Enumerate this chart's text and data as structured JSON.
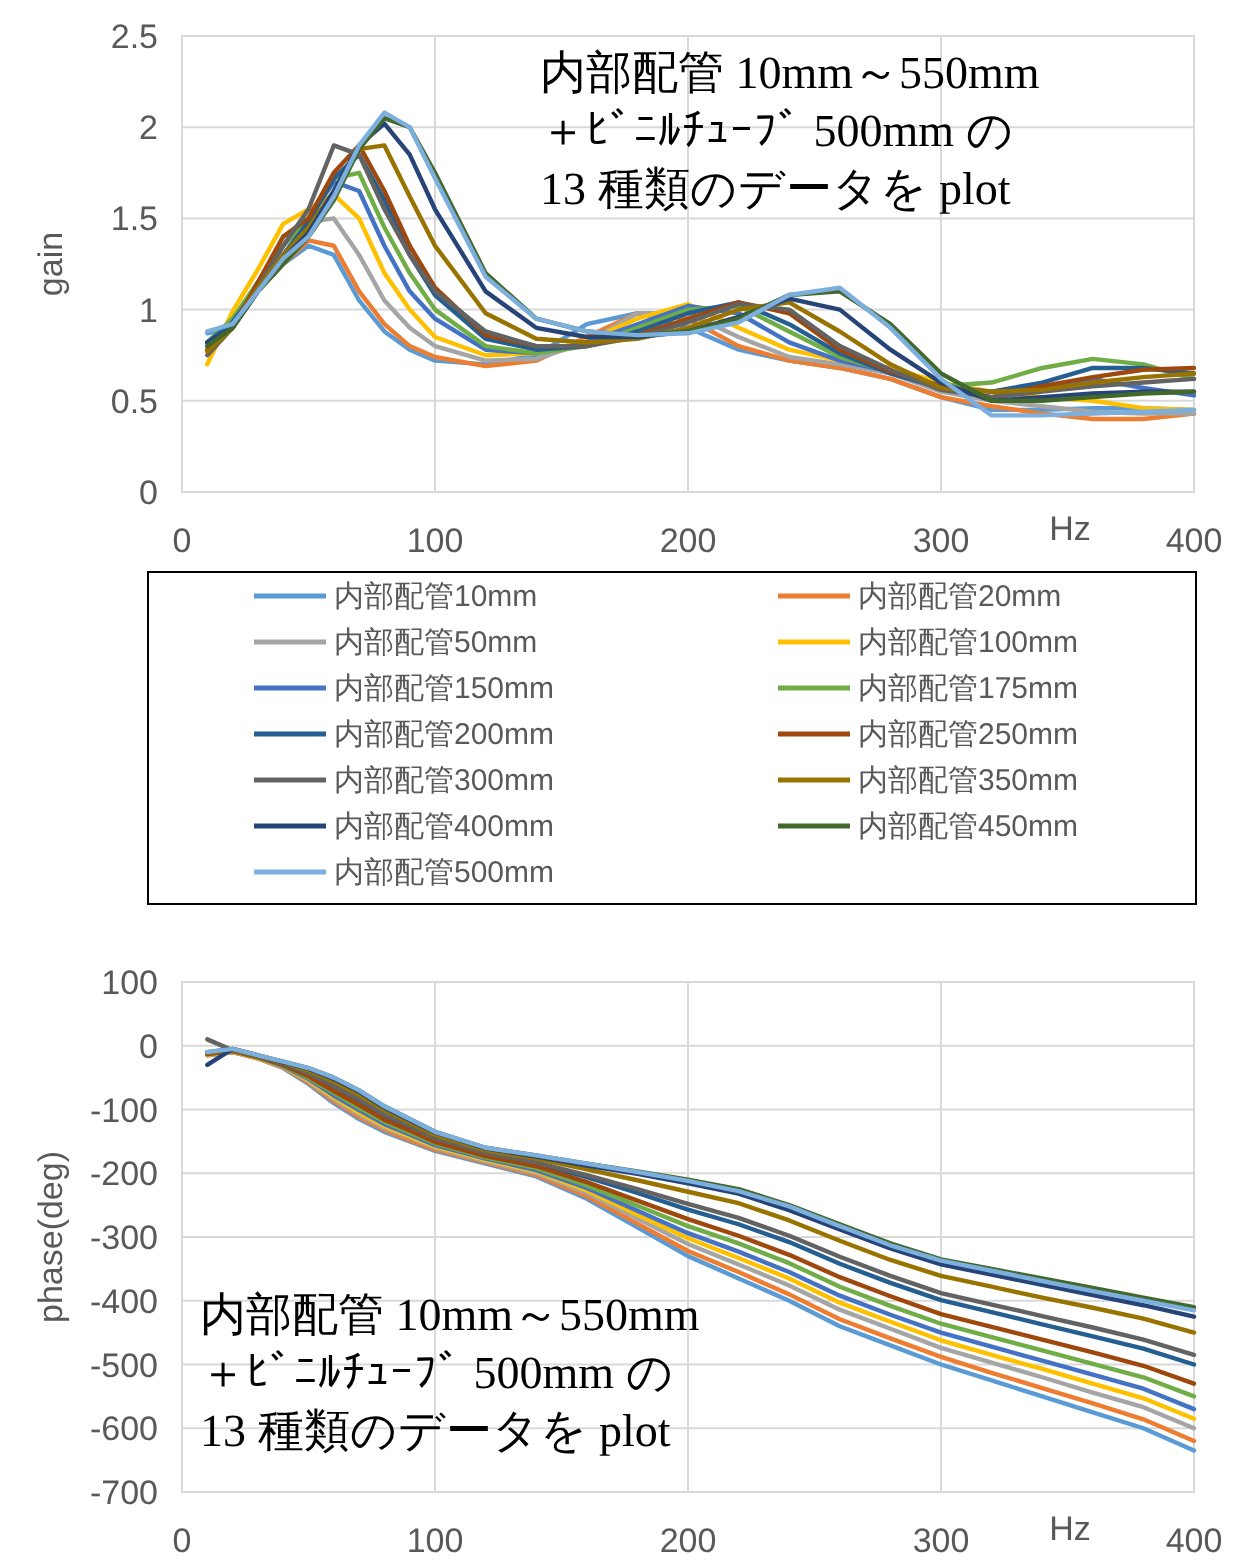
{
  "chart_data": [
    {
      "type": "line",
      "ylabel": "gain",
      "xlabel": "Hz",
      "xlim": [
        0,
        400
      ],
      "ylim": [
        0,
        2.5
      ],
      "xticks": [
        0,
        100,
        200,
        300,
        400
      ],
      "yticks": [
        0,
        0.5,
        1,
        1.5,
        2,
        2.5
      ],
      "grid": true,
      "legend": "bottom",
      "annotations": [
        "内部配管 10mm～550mm\n＋ﾋﾞﾆﾙﾁｭｰﾌﾞ 500mm の\n13 種類のデータを plot"
      ],
      "x": [
        10,
        20,
        30,
        40,
        50,
        60,
        70,
        80,
        90,
        100,
        120,
        140,
        160,
        180,
        200,
        220,
        240,
        260,
        280,
        300,
        320,
        340,
        360,
        380,
        400
      ],
      "series": [
        {
          "name": "内部配管10mm",
          "color": "#5b9bd5",
          "values": [
            0.87,
            0.9,
            1.1,
            1.25,
            1.35,
            1.3,
            1.05,
            0.88,
            0.78,
            0.72,
            0.7,
            0.75,
            0.92,
            0.98,
            0.9,
            0.78,
            0.72,
            0.68,
            0.62,
            0.52,
            0.45,
            0.45,
            0.46,
            0.46,
            0.45
          ]
        },
        {
          "name": "内部配管20mm",
          "color": "#ed7d31",
          "values": [
            null,
            null,
            1.1,
            1.25,
            1.38,
            1.35,
            1.1,
            0.92,
            0.8,
            0.74,
            0.69,
            0.72,
            0.85,
            0.98,
            0.95,
            0.8,
            0.72,
            0.68,
            0.62,
            0.52,
            0.47,
            0.43,
            0.4,
            0.4,
            0.43
          ]
        },
        {
          "name": "内部配管50mm",
          "color": "#a5a5a5",
          "values": [
            0.8,
            0.92,
            1.12,
            1.3,
            1.48,
            1.5,
            1.3,
            1.05,
            0.9,
            0.8,
            0.72,
            0.73,
            0.82,
            0.98,
            0.98,
            0.85,
            0.74,
            0.7,
            0.65,
            0.55,
            0.5,
            0.47,
            0.44,
            0.43,
            0.43
          ]
        },
        {
          "name": "内部配管100mm",
          "color": "#ffc000",
          "values": [
            0.7,
            0.99,
            1.22,
            1.47,
            1.55,
            1.63,
            1.5,
            1.2,
            1.0,
            0.85,
            0.75,
            0.76,
            0.83,
            0.95,
            1.03,
            0.9,
            0.78,
            0.72,
            0.68,
            0.6,
            0.55,
            0.52,
            0.5,
            0.46,
            0.45
          ]
        },
        {
          "name": "内部配管150mm",
          "color": "#4472c4",
          "values": [
            0.8,
            0.92,
            1.15,
            1.35,
            1.5,
            1.7,
            1.65,
            1.35,
            1.1,
            0.95,
            0.78,
            0.76,
            0.82,
            0.92,
            1.02,
            0.98,
            0.82,
            0.72,
            0.66,
            0.58,
            0.55,
            0.58,
            0.62,
            0.57,
            0.53
          ]
        },
        {
          "name": "内部配管175mm",
          "color": "#70ad47",
          "values": [
            0.82,
            0.95,
            1.15,
            1.35,
            1.5,
            1.72,
            1.75,
            1.45,
            1.2,
            1.0,
            0.8,
            0.76,
            0.8,
            0.9,
            1.0,
            1.02,
            0.88,
            0.74,
            0.66,
            0.58,
            0.6,
            0.68,
            0.73,
            0.7,
            0.62
          ]
        },
        {
          "name": "内部配管200mm",
          "color": "#255e91",
          "values": [
            0.82,
            0.93,
            1.12,
            1.3,
            1.48,
            1.72,
            1.85,
            1.6,
            1.3,
            1.08,
            0.84,
            0.78,
            0.8,
            0.88,
            0.98,
            1.04,
            0.92,
            0.76,
            0.65,
            0.57,
            0.55,
            0.6,
            0.68,
            0.68,
            0.65
          ]
        },
        {
          "name": "内部配管250mm",
          "color": "#9e480e",
          "values": [
            0.78,
            0.9,
            1.15,
            1.4,
            1.5,
            1.75,
            1.9,
            1.65,
            1.35,
            1.12,
            0.86,
            0.8,
            0.8,
            0.86,
            0.95,
            1.04,
            0.98,
            0.78,
            0.66,
            0.58,
            0.52,
            0.58,
            0.63,
            0.67,
            0.68
          ]
        },
        {
          "name": "内部配管300mm",
          "color": "#636363",
          "values": [
            0.75,
            0.9,
            1.12,
            1.35,
            1.55,
            1.9,
            1.85,
            1.55,
            1.3,
            1.1,
            0.88,
            0.8,
            0.8,
            0.85,
            0.93,
            1.03,
            1.0,
            0.8,
            0.67,
            0.56,
            0.52,
            0.55,
            0.58,
            0.6,
            0.62
          ]
        },
        {
          "name": "内部配管350mm",
          "color": "#997300",
          "values": [
            0.77,
            0.9,
            1.12,
            1.3,
            1.45,
            1.65,
            1.88,
            1.9,
            1.62,
            1.35,
            0.98,
            0.84,
            0.82,
            0.84,
            0.9,
            1.0,
            1.04,
            0.88,
            0.7,
            0.57,
            0.55,
            0.56,
            0.6,
            0.63,
            0.65
          ]
        },
        {
          "name": "内部配管400mm",
          "color": "#264478",
          "values": [
            0.82,
            0.9,
            1.1,
            1.28,
            1.42,
            1.65,
            1.9,
            2.02,
            1.85,
            1.55,
            1.1,
            0.9,
            0.85,
            0.85,
            0.88,
            0.96,
            1.06,
            1.0,
            0.78,
            0.6,
            0.5,
            0.52,
            0.54,
            0.55,
            0.55
          ]
        },
        {
          "name": "内部配管450mm",
          "color": "#43682b",
          "values": [
            0.8,
            0.9,
            1.1,
            1.25,
            1.4,
            1.6,
            1.88,
            2.05,
            2.0,
            1.75,
            1.2,
            0.95,
            0.88,
            0.86,
            0.88,
            0.95,
            1.08,
            1.1,
            0.92,
            0.65,
            0.5,
            0.5,
            0.52,
            0.54,
            0.55
          ]
        },
        {
          "name": "内部配管500mm",
          "color": "#7cafdd",
          "values": [
            0.88,
            0.92,
            1.1,
            1.28,
            1.4,
            1.62,
            1.9,
            2.08,
            2.0,
            1.72,
            1.18,
            0.95,
            0.88,
            0.86,
            0.87,
            0.93,
            1.08,
            1.12,
            0.9,
            0.62,
            0.42,
            0.42,
            0.43,
            0.44,
            0.45
          ]
        }
      ]
    },
    {
      "type": "line",
      "ylabel": "phase(deg)",
      "xlabel": "Hz",
      "xlim": [
        0,
        400
      ],
      "ylim": [
        -700,
        100
      ],
      "xticks": [
        0,
        100,
        200,
        300,
        400
      ],
      "yticks": [
        -700,
        -600,
        -500,
        -400,
        -300,
        -200,
        -100,
        0,
        100
      ],
      "grid": true,
      "annotations": [
        "内部配管 10mm～550mm\n＋ﾋﾞﾆﾙﾁｭｰﾌﾞ 500mm の\n13 種類のデータを plot"
      ],
      "x": [
        10,
        20,
        30,
        40,
        50,
        60,
        70,
        80,
        90,
        100,
        120,
        140,
        160,
        180,
        200,
        220,
        240,
        260,
        280,
        300,
        320,
        340,
        360,
        380,
        400
      ],
      "series": [
        {
          "color": "#5b9bd5",
          "values": [
            -15,
            -10,
            -20,
            -35,
            -60,
            -90,
            -115,
            -135,
            -150,
            -165,
            -185,
            -205,
            -240,
            -285,
            -330,
            -365,
            -400,
            -440,
            -470,
            -500,
            -525,
            -550,
            -575,
            -600,
            -635
          ]
        },
        {
          "color": "#ed7d31",
          "values": [
            -15,
            -10,
            -20,
            -34,
            -58,
            -87,
            -112,
            -132,
            -148,
            -163,
            -183,
            -203,
            -236,
            -279,
            -322,
            -355,
            -390,
            -429,
            -459,
            -488,
            -513,
            -537,
            -561,
            -586,
            -620
          ]
        },
        {
          "color": "#a5a5a5",
          "values": [
            -14,
            -9,
            -19,
            -33,
            -56,
            -84,
            -108,
            -129,
            -144,
            -160,
            -181,
            -200,
            -231,
            -271,
            -311,
            -343,
            -376,
            -414,
            -444,
            -474,
            -497,
            -520,
            -544,
            -567,
            -600
          ]
        },
        {
          "color": "#ffc000",
          "values": [
            -14,
            -9,
            -19,
            -33,
            -54,
            -81,
            -105,
            -126,
            -142,
            -158,
            -179,
            -197,
            -227,
            -265,
            -302,
            -333,
            -365,
            -403,
            -433,
            -462,
            -485,
            -507,
            -530,
            -553,
            -585
          ]
        },
        {
          "color": "#4472c4",
          "values": [
            -13,
            -8,
            -18,
            -32,
            -52,
            -78,
            -101,
            -123,
            -139,
            -156,
            -177,
            -195,
            -223,
            -259,
            -294,
            -323,
            -355,
            -392,
            -422,
            -450,
            -472,
            -494,
            -516,
            -538,
            -570
          ]
        },
        {
          "color": "#70ad47",
          "values": [
            -13,
            -8,
            -18,
            -31,
            -50,
            -74,
            -97,
            -119,
            -136,
            -153,
            -175,
            -192,
            -219,
            -251,
            -283,
            -310,
            -341,
            -378,
            -408,
            -436,
            -457,
            -478,
            -499,
            -520,
            -550
          ]
        },
        {
          "color": "#255e91",
          "values": [
            -12,
            -7,
            -17,
            -29,
            -45,
            -66,
            -88,
            -111,
            -129,
            -147,
            -170,
            -185,
            -206,
            -231,
            -257,
            -280,
            -308,
            -342,
            -372,
            -399,
            -418,
            -437,
            -456,
            -475,
            -500
          ]
        },
        {
          "color": "#9e480e",
          "values": [
            -13,
            -8,
            -18,
            -30,
            -48,
            -71,
            -93,
            -116,
            -133,
            -151,
            -173,
            -189,
            -214,
            -243,
            -272,
            -298,
            -328,
            -363,
            -393,
            -421,
            -441,
            -461,
            -481,
            -502,
            -530
          ]
        },
        {
          "color": "#636363",
          "values": [
            10,
            -7,
            -17,
            -28,
            -43,
            -63,
            -84,
            -108,
            -126,
            -145,
            -168,
            -183,
            -203,
            -225,
            -248,
            -270,
            -298,
            -331,
            -361,
            -388,
            -406,
            -424,
            -442,
            -461,
            -485
          ]
        },
        {
          "color": "#997300",
          "values": [
            -11,
            -6,
            -16,
            -27,
            -39,
            -56,
            -77,
            -101,
            -121,
            -140,
            -164,
            -177,
            -194,
            -211,
            -229,
            -247,
            -274,
            -306,
            -336,
            -361,
            -378,
            -395,
            -411,
            -428,
            -450
          ]
        },
        {
          "color": "#264478",
          "values": [
            -30,
            -5,
            -15,
            -26,
            -36,
            -52,
            -72,
            -97,
            -117,
            -136,
            -161,
            -174,
            -188,
            -201,
            -216,
            -232,
            -258,
            -288,
            -318,
            -343,
            -359,
            -375,
            -391,
            -407,
            -425
          ]
        },
        {
          "color": "#43682b",
          "values": [
            -10,
            -5,
            -15,
            -25,
            -35,
            -50,
            -70,
            -95,
            -115,
            -135,
            -160,
            -172,
            -185,
            -197,
            -210,
            -225,
            -250,
            -280,
            -310,
            -335,
            -350,
            -365,
            -380,
            -395,
            -410
          ]
        },
        {
          "color": "#7cafdd",
          "values": [
            -10,
            -5,
            -15,
            -25,
            -35,
            -50,
            -70,
            -95,
            -115,
            -135,
            -160,
            -172,
            -185,
            -198,
            -212,
            -228,
            -252,
            -283,
            -313,
            -337,
            -353,
            -369,
            -385,
            -400,
            -415
          ]
        }
      ]
    }
  ]
}
